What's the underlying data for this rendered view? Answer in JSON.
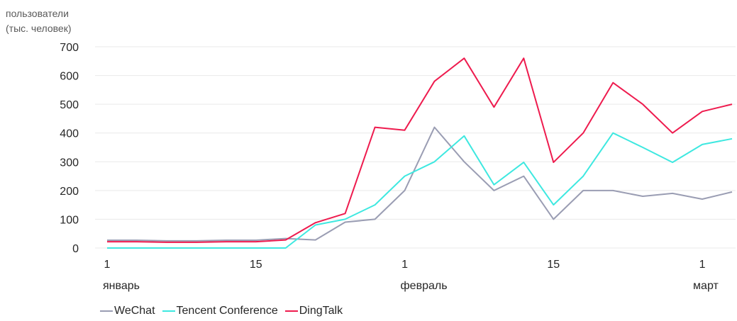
{
  "chart_data": {
    "type": "line",
    "ylabel": [
      "пользователи",
      "(тыс. человек)"
    ],
    "ylim": [
      0,
      700
    ],
    "yticks": [
      0,
      100,
      200,
      300,
      400,
      500,
      600,
      700
    ],
    "xlim": [
      1,
      22
    ],
    "x": [
      1,
      2,
      3,
      4,
      5,
      6,
      7,
      8,
      9,
      10,
      11,
      12,
      13,
      14,
      15,
      16,
      17,
      18,
      19,
      20,
      21,
      22
    ],
    "xticks": [
      {
        "x": 1,
        "label": "1",
        "month": "январь"
      },
      {
        "x": 6,
        "label": "15",
        "month": ""
      },
      {
        "x": 11,
        "label": "1",
        "month": "февраль"
      },
      {
        "x": 16,
        "label": "15",
        "month": ""
      },
      {
        "x": 21,
        "label": "1",
        "month": "март"
      }
    ],
    "grid": true,
    "legend_position": "bottom-left",
    "series": [
      {
        "name": "WeChat",
        "color": "#9a9db3",
        "values": [
          27,
          27,
          25,
          25,
          27,
          27,
          33,
          28,
          90,
          100,
          200,
          420,
          300,
          200,
          250,
          100,
          200,
          200,
          180,
          190,
          170,
          195
        ]
      },
      {
        "name": "Tencent Conference",
        "color": "#3ee8e0",
        "values": [
          0,
          0,
          0,
          0,
          0,
          0,
          0,
          80,
          100,
          150,
          250,
          300,
          390,
          220,
          298,
          150,
          250,
          400,
          350,
          298,
          360,
          380
        ]
      },
      {
        "name": "DingTalk",
        "color": "#ee1b4e",
        "values": [
          22,
          22,
          20,
          20,
          22,
          22,
          28,
          88,
          120,
          420,
          410,
          580,
          660,
          490,
          660,
          298,
          400,
          575,
          500,
          400,
          475,
          500
        ]
      }
    ]
  }
}
